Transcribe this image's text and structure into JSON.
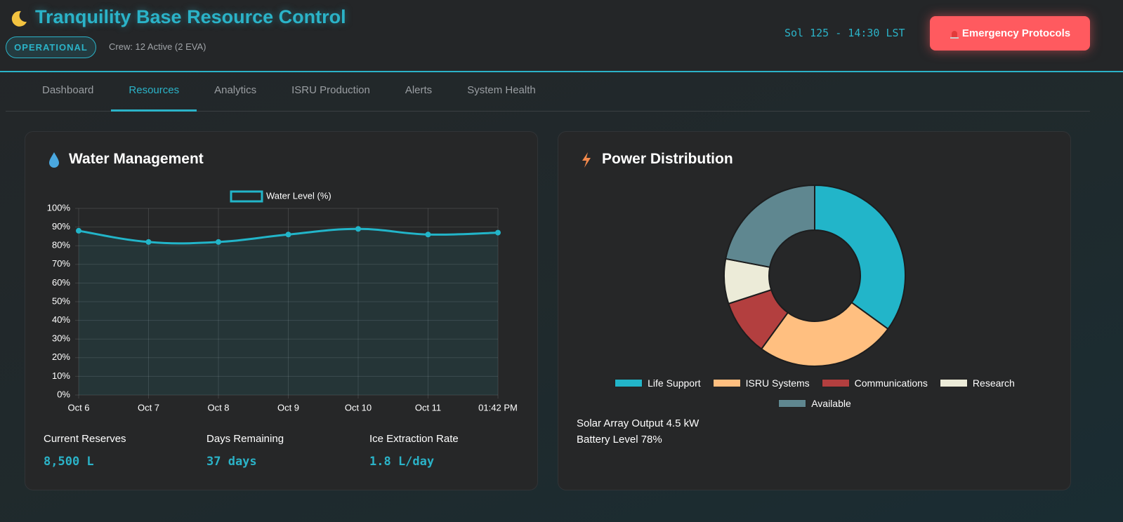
{
  "header": {
    "title": "Tranquility Base Resource Control",
    "status": "OPERATIONAL",
    "crew": "Crew: 12 Active (2 EVA)",
    "clock": "Sol 125 - 14:30 LST",
    "emergency_button": "Emergency Protocols"
  },
  "nav": {
    "tabs": [
      "Dashboard",
      "Resources",
      "Analytics",
      "ISRU Production",
      "Alerts",
      "System Health"
    ],
    "active_tab": 1
  },
  "chart_data": [
    {
      "type": "line",
      "title": "Water Management",
      "categories": [
        "Oct 6",
        "Oct 7",
        "Oct 8",
        "Oct 9",
        "Oct 10",
        "Oct 11",
        "01:42 PM"
      ],
      "series": [
        {
          "name": "Water Level (%)",
          "color": "#22b5c9",
          "values": [
            88,
            82,
            82,
            86,
            89,
            86,
            87
          ]
        }
      ],
      "ylim": [
        0,
        100
      ],
      "yticks": [
        {
          "value": 0,
          "label": "0%"
        },
        {
          "value": 10,
          "label": "10%"
        },
        {
          "value": 20,
          "label": "20%"
        },
        {
          "value": 30,
          "label": "30%"
        },
        {
          "value": 40,
          "label": "40%"
        },
        {
          "value": 50,
          "label": "50%"
        },
        {
          "value": 60,
          "label": "60%"
        },
        {
          "value": 70,
          "label": "70%"
        },
        {
          "value": 80,
          "label": "80%"
        },
        {
          "value": 90,
          "label": "90%"
        },
        {
          "value": 100,
          "label": "100%"
        }
      ],
      "grid": true,
      "legend": "top"
    },
    {
      "type": "doughnut",
      "title": "Power Distribution",
      "categories": [
        "Life Support",
        "ISRU Systems",
        "Communications",
        "Research",
        "Available"
      ],
      "values": [
        35,
        25,
        10,
        8,
        22
      ],
      "colors": [
        "#22b5c9",
        "#ffbf80",
        "#b33f3f",
        "#ecebd8",
        "#5f8790"
      ],
      "legend": "bottom"
    }
  ],
  "water_stats": [
    {
      "label": "Current Reserves",
      "value": "8,500 L"
    },
    {
      "label": "Days Remaining",
      "value": "37 days"
    },
    {
      "label": "Ice Extraction Rate",
      "value": "1.8 L/day"
    }
  ],
  "power_stats": [
    {
      "label": "Solar Array Output",
      "value": "4.5 kW"
    },
    {
      "label": "Battery Level",
      "value": "78%"
    }
  ]
}
